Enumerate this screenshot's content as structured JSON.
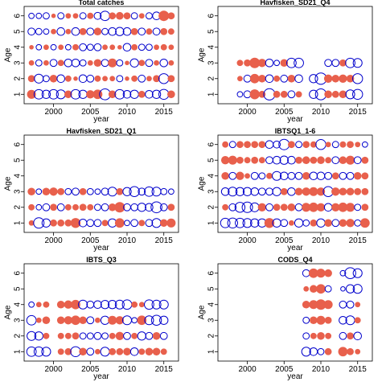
{
  "figure": {
    "xlabel": "year",
    "ylabel": "Age",
    "xlim": [
      1996,
      2017
    ],
    "ylim": [
      0.4,
      6.6
    ],
    "xticks": [
      2000,
      2005,
      2010,
      2015
    ],
    "yticks": [
      1,
      2,
      3,
      4,
      5,
      6
    ],
    "colors": {
      "positive": "#e8604c",
      "negative": "#0000cc",
      "frame": "#000000"
    }
  },
  "chart_data": [
    {
      "type": "scatter",
      "title": "Total catches",
      "ages": [
        1,
        2,
        3,
        4,
        5,
        6
      ],
      "years": [
        1997,
        1998,
        1999,
        2000,
        2001,
        2002,
        2003,
        2004,
        2005,
        2006,
        2007,
        2008,
        2009,
        2010,
        2011,
        2012,
        2013,
        2014,
        2015,
        2016
      ],
      "residuals": [
        [
          0.8,
          -0.9,
          -0.7,
          -0.9,
          -0.8,
          0.6,
          -0.9,
          -0.7,
          0.7,
          0.9,
          -1.2,
          0.6,
          -0.9,
          -0.6,
          -0.7,
          0.5,
          -0.6,
          -0.7,
          -1.0,
          0.6
        ],
        [
          0.5,
          -0.8,
          -0.4,
          0.6,
          -0.6,
          0.4,
          0.2,
          -0.6,
          -0.5,
          0.4,
          0.3,
          0.3,
          -0.4,
          0.2,
          0.4,
          -0.5,
          0.3,
          0.5,
          -1.0,
          0.5
        ],
        [
          0.3,
          -0.4,
          0.3,
          -0.5,
          0.4,
          -0.6,
          -0.6,
          -0.4,
          0.3,
          0.6,
          -0.5,
          0.8,
          -0.4,
          0.2,
          -0.7,
          0.4,
          -0.5,
          0.3,
          -0.6,
          0.3
        ],
        [
          0.2,
          -0.3,
          0.3,
          -0.3,
          0.3,
          -0.3,
          0.4,
          -0.5,
          -0.4,
          -0.5,
          0.3,
          0.3,
          0.2,
          -0.6,
          0.4,
          -0.4,
          -0.4,
          0.3,
          0.4,
          0.3
        ],
        [
          -0.5,
          -0.4,
          -0.3,
          0.3,
          -0.6,
          0.3,
          -0.6,
          0.5,
          -0.5,
          0.6,
          -0.4,
          -0.6,
          -0.7,
          -0.6,
          0.5,
          -0.5,
          0.4,
          -0.5,
          0.5,
          0.4
        ],
        [
          -0.3,
          -0.3,
          -0.4,
          0.2,
          -0.4,
          0.3,
          0.3,
          -0.4,
          0.4,
          -0.5,
          -0.9,
          0.5,
          0.6,
          0.5,
          -0.4,
          0.3,
          -0.4,
          -0.6,
          1.1,
          0.5
        ]
      ]
    },
    {
      "type": "scatter",
      "title": "Havfisken_SD21_Q4",
      "ages": [
        1,
        2,
        3
      ],
      "years": [
        1999,
        2000,
        2001,
        2002,
        2003,
        2004,
        2005,
        2006,
        2007,
        2009,
        2010,
        2011,
        2012,
        2013,
        2014,
        2015
      ],
      "residuals": [
        [
          -0.3,
          -0.5,
          1.0,
          0.5,
          -1.3,
          0.5,
          0.5,
          -0.5,
          0.4,
          -0.7,
          -1.2,
          0.6,
          0.5,
          0.6,
          -0.8,
          -1.0
        ],
        [
          0.3,
          -0.5,
          0.9,
          0.6,
          -0.6,
          0.4,
          -0.5,
          0.6,
          -0.6,
          -0.7,
          -1.3,
          0.7,
          0.6,
          0.7,
          0.6,
          -1.0
        ],
        [
          0.4,
          0.5,
          1.1,
          0.7,
          -0.6,
          -0.3,
          0.6,
          -0.9,
          -0.9,
          0,
          0,
          -0.5,
          -0.5,
          0.5,
          -0.9,
          -0.8
        ]
      ]
    },
    {
      "type": "scatter",
      "title": "Havfisken_SD21_Q1",
      "ages": [
        1,
        2,
        3
      ],
      "years": [
        1997,
        1998,
        1999,
        2000,
        2001,
        2002,
        2003,
        2004,
        2005,
        2006,
        2007,
        2008,
        2009,
        2010,
        2011,
        2012,
        2013,
        2014,
        2015,
        2016
      ],
      "residuals": [
        [
          0.3,
          -1.1,
          -0.7,
          0.5,
          0.5,
          0.5,
          1.0,
          -0.6,
          -0.5,
          -0.5,
          0.4,
          -0.7,
          0.9,
          -0.3,
          -0.5,
          0.4,
          -0.5,
          -0.8,
          0.6,
          0.8
        ],
        [
          0.4,
          -0.3,
          -0.5,
          0.5,
          -0.5,
          0.4,
          0.4,
          0.5,
          0.4,
          -0.4,
          -0.5,
          0.6,
          1.1,
          -0.5,
          -0.5,
          -0.7,
          -0.6,
          -1.2,
          -0.5,
          0.5
        ],
        [
          0.6,
          -0.3,
          0.6,
          0.7,
          0.5,
          -0.4,
          -0.5,
          0.5,
          -0.4,
          -0.3,
          -0.5,
          -0.8,
          0.5,
          -0.7,
          -1.0,
          -0.5,
          -0.9,
          -0.8,
          -0.4,
          -0.3
        ]
      ]
    },
    {
      "type": "scatter",
      "title": "IBTSQ1_1-6",
      "ages": [
        1,
        2,
        3,
        4,
        5,
        6
      ],
      "years": [
        1997,
        1998,
        1999,
        2000,
        2001,
        2002,
        2003,
        2004,
        2005,
        2006,
        2007,
        2008,
        2009,
        2010,
        2011,
        2012,
        2013,
        2014,
        2015,
        2016
      ],
      "residuals": [
        [
          -0.9,
          -1.0,
          -0.9,
          -0.8,
          -0.7,
          -0.7,
          1.0,
          -0.7,
          -0.5,
          0.3,
          -0.7,
          -0.4,
          0.5,
          -0.7,
          0.6,
          -0.5,
          0.6,
          0.7,
          -0.4,
          0.9
        ],
        [
          0.4,
          -0.5,
          -1.0,
          -1.1,
          -0.8,
          0.7,
          -0.5,
          0.5,
          0.5,
          0.6,
          -0.5,
          0.8,
          0.9,
          0.7,
          -0.6,
          0.7,
          0.9,
          0.8,
          -0.4,
          0.5
        ],
        [
          -0.6,
          -0.8,
          -0.7,
          -0.7,
          -0.6,
          -0.5,
          -0.5,
          -0.7,
          0.5,
          -0.6,
          0.6,
          0.7,
          0.8,
          0.7,
          -1.0,
          0.7,
          0.6,
          0.6,
          0.5,
          0.5
        ],
        [
          0.6,
          -0.5,
          0.7,
          0.3,
          -0.5,
          -0.4,
          0.4,
          -0.8,
          -0.6,
          -0.5,
          -0.5,
          0.6,
          -0.6,
          -0.6,
          -0.5,
          0.5,
          -0.5,
          -0.5,
          0.6,
          0.5
        ],
        [
          0.7,
          0.8,
          0.5,
          0.4,
          0.5,
          0.4,
          -0.5,
          -0.6,
          -0.7,
          -0.6,
          0.5,
          0.6,
          0.5,
          0.6,
          0.4,
          -0.5,
          0.6,
          0.8,
          -0.5,
          0.5
        ],
        [
          0.4,
          -0.4,
          0.5,
          0.5,
          0.5,
          0.5,
          -0.6,
          -0.5,
          -1.1,
          0.5,
          -0.4,
          0.5,
          0.4,
          -1.0,
          0.3,
          -0.4,
          0.4,
          0.5,
          0.3,
          -0.3
        ]
      ]
    },
    {
      "type": "scatter",
      "title": "IBTS_Q3",
      "ages": [
        1,
        2,
        3,
        4
      ],
      "years": [
        1997,
        1998,
        1999,
        2001,
        2002,
        2003,
        2004,
        2005,
        2006,
        2007,
        2008,
        2009,
        2010,
        2011,
        2012,
        2013,
        2014,
        2015
      ],
      "residuals": [
        [
          -0.9,
          -0.9,
          -0.8,
          0.4,
          0.5,
          -1.0,
          0.6,
          -0.5,
          0.3,
          -0.8,
          0.5,
          0.5,
          0.6,
          -0.6,
          0.4,
          0.6,
          0.6,
          0.4
        ],
        [
          -0.8,
          -0.7,
          0.4,
          0.4,
          0.4,
          0.5,
          -0.4,
          -0.4,
          -0.5,
          -0.4,
          0.4,
          0.7,
          -0.5,
          0.4,
          -0.7,
          -0.5,
          0.6,
          -0.5
        ],
        [
          -0.9,
          0.3,
          0.6,
          0.6,
          0.7,
          0.9,
          0.6,
          -0.5,
          0.3,
          -0.7,
          0.8,
          0.7,
          -0.8,
          -0.3,
          0.9,
          -0.8,
          -1.0,
          -0.7
        ],
        [
          -0.3,
          0.3,
          0.4,
          0.6,
          0.7,
          0.9,
          -0.8,
          -0.5,
          -0.6,
          -0.7,
          -0.7,
          -0.8,
          -0.9,
          0.4,
          0.3,
          -0.9,
          -0.8,
          -0.8
        ]
      ]
    },
    {
      "type": "scatter",
      "title": "CODS_Q4",
      "ages": [
        1,
        2,
        3,
        4,
        5,
        6
      ],
      "years": [
        2008,
        2009,
        2010,
        2011,
        2013,
        2014,
        2015
      ],
      "residuals": [
        [
          -0.8,
          -0.6,
          -0.4,
          0.5,
          0.9,
          0.5,
          0.3
        ],
        [
          -0.4,
          0.4,
          0.6,
          0.4,
          -0.5,
          0.5,
          -0.6
        ],
        [
          -0.4,
          0.6,
          0.8,
          0.5,
          -0.6,
          -0.8,
          0.4
        ],
        [
          0.6,
          0.8,
          1.1,
          0.8,
          -0.5,
          -0.5,
          0.3
        ],
        [
          0.3,
          0.6,
          0.9,
          -0.4,
          -0.2,
          -0.7,
          -0.8
        ],
        [
          -0.5,
          0.9,
          0.8,
          0.6,
          -0.3,
          -1.2,
          -0.8
        ]
      ]
    }
  ]
}
